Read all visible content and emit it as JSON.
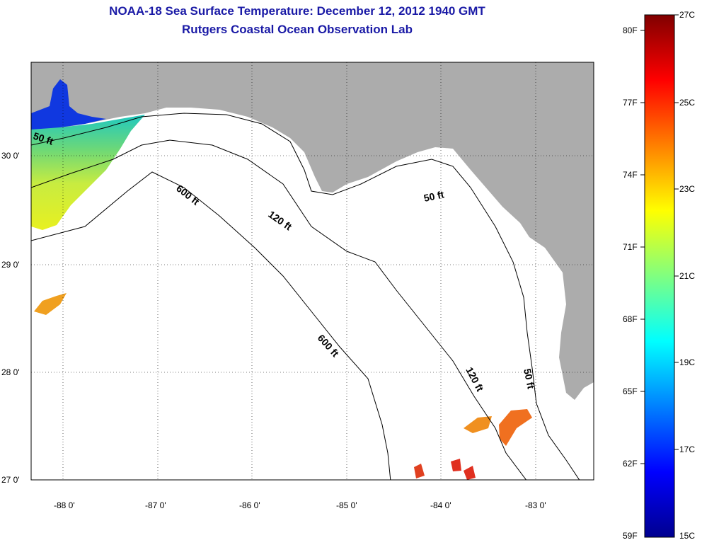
{
  "title": "NOAA-18 Sea Surface Temperature:  December 12, 2012 1940 GMT",
  "subtitle": "Rutgers Coastal Ocean Observation Lab",
  "map": {
    "lon_labels": [
      "-88 0'",
      "-87 0'",
      "-86 0'",
      "-85 0'",
      "-84 0'",
      "-83 0'"
    ],
    "lat_labels": [
      "30 0'",
      "29 0'",
      "28 0'",
      "27 0'"
    ],
    "contour_labels": {
      "c50_west": "50 ft",
      "c600_north": "600 ft",
      "c120_north": "120 ft",
      "c50_east": "50 ft",
      "c600_south": "600 ft",
      "c120_south": "120 ft",
      "c50_south": "50 ft"
    },
    "colors": {
      "land": "#acacac",
      "ocean": "#ffffff",
      "contour": "#000000"
    }
  },
  "colorbar": {
    "fahrenheit_labels": [
      "80F",
      "77F",
      "74F",
      "71F",
      "68F",
      "65F",
      "62F",
      "59F"
    ],
    "celsius_labels": [
      "27C",
      "25C",
      "23C",
      "21C",
      "19C",
      "17C",
      "15C"
    ],
    "scale_colors": [
      "#00008f",
      "#0000ff",
      "#0080ff",
      "#00ffff",
      "#80ff80",
      "#ffff00",
      "#ff8000",
      "#ff0000",
      "#800000"
    ]
  }
}
